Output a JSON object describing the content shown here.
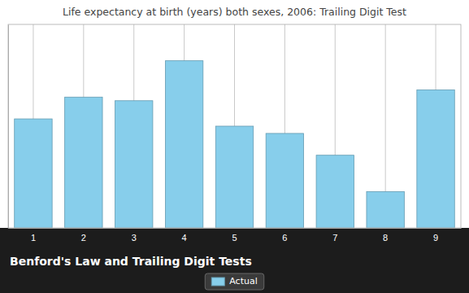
{
  "chart_data": {
    "type": "bar",
    "title": "Life expectancy at birth (years) both sexes, 2006: Trailing Digit Test",
    "subtitle": "Benford's Law and Trailing Digit Tests",
    "categories": [
      "1",
      "2",
      "3",
      "4",
      "5",
      "6",
      "7",
      "8",
      "9"
    ],
    "series": [
      {
        "name": "Actual",
        "color": "#87CEEB",
        "values": [
          15,
          18,
          17.5,
          23,
          14,
          13,
          10,
          5,
          19
        ]
      }
    ],
    "ylim": [
      0,
      28
    ],
    "yticks": [],
    "grid": true,
    "tick_labels": "x",
    "legend": "bottom"
  }
}
